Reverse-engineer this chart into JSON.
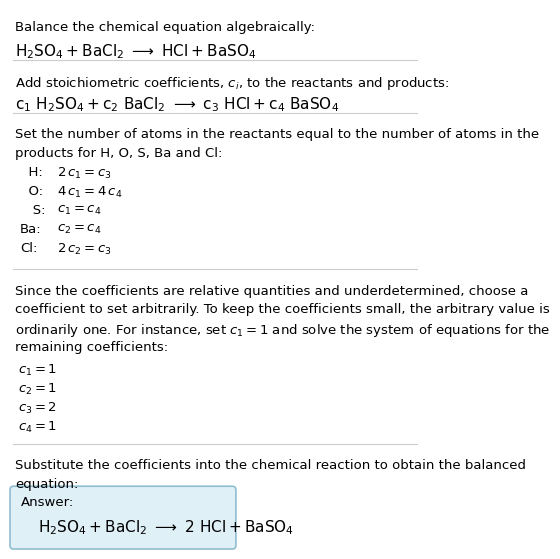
{
  "sections": {
    "s1_intro": "Balance the chemical equation algebraically:",
    "s1_eq": "$\\mathrm{H_2SO_4 + BaCl_2 \\ \\longrightarrow \\ HCl + BaSO_4}$",
    "s2_intro": "Add stoichiometric coefficients, $c_i$, to the reactants and products:",
    "s2_eq": "$\\mathrm{c_1\\ H_2SO_4 + c_2\\ BaCl_2 \\ \\longrightarrow \\ c_3\\ HCl + c_4\\ BaSO_4}$",
    "s3_intro_l1": "Set the number of atoms in the reactants equal to the number of atoms in the",
    "s3_intro_l2": "products for H, O, S, Ba and Cl:",
    "s3_eqs": [
      [
        "  H:",
        "$2\\,c_1 = c_3$"
      ],
      [
        "  O:",
        "$4\\,c_1 = 4\\,c_4$"
      ],
      [
        "   S:",
        "$c_1 = c_4$"
      ],
      [
        "Ba:",
        "$c_2 = c_4$"
      ],
      [
        "Cl:",
        "$2\\,c_2 = c_3$"
      ]
    ],
    "s4_intro": [
      "Since the coefficients are relative quantities and underdetermined, choose a",
      "coefficient to set arbitrarily. To keep the coefficients small, the arbitrary value is",
      "ordinarily one. For instance, set $c_1 = 1$ and solve the system of equations for the",
      "remaining coefficients:"
    ],
    "s4_vals": [
      "$c_1 = 1$",
      "$c_2 = 1$",
      "$c_3 = 2$",
      "$c_4 = 1$"
    ],
    "s5_intro_l1": "Substitute the coefficients into the chemical reaction to obtain the balanced",
    "s5_intro_l2": "equation:",
    "s5_answer_label": "Answer:",
    "s5_answer_eq": "$\\mathrm{H_2SO_4 + BaCl_2 \\ \\longrightarrow \\ 2\\ HCl + BaSO_4}$"
  },
  "colors": {
    "background": "#ffffff",
    "text": "#000000",
    "separator": "#cccccc",
    "answer_box_bg": "#dff0f7",
    "answer_box_border": "#90bdd0"
  },
  "font_size": 9.5,
  "eq_font_size": 11.0
}
